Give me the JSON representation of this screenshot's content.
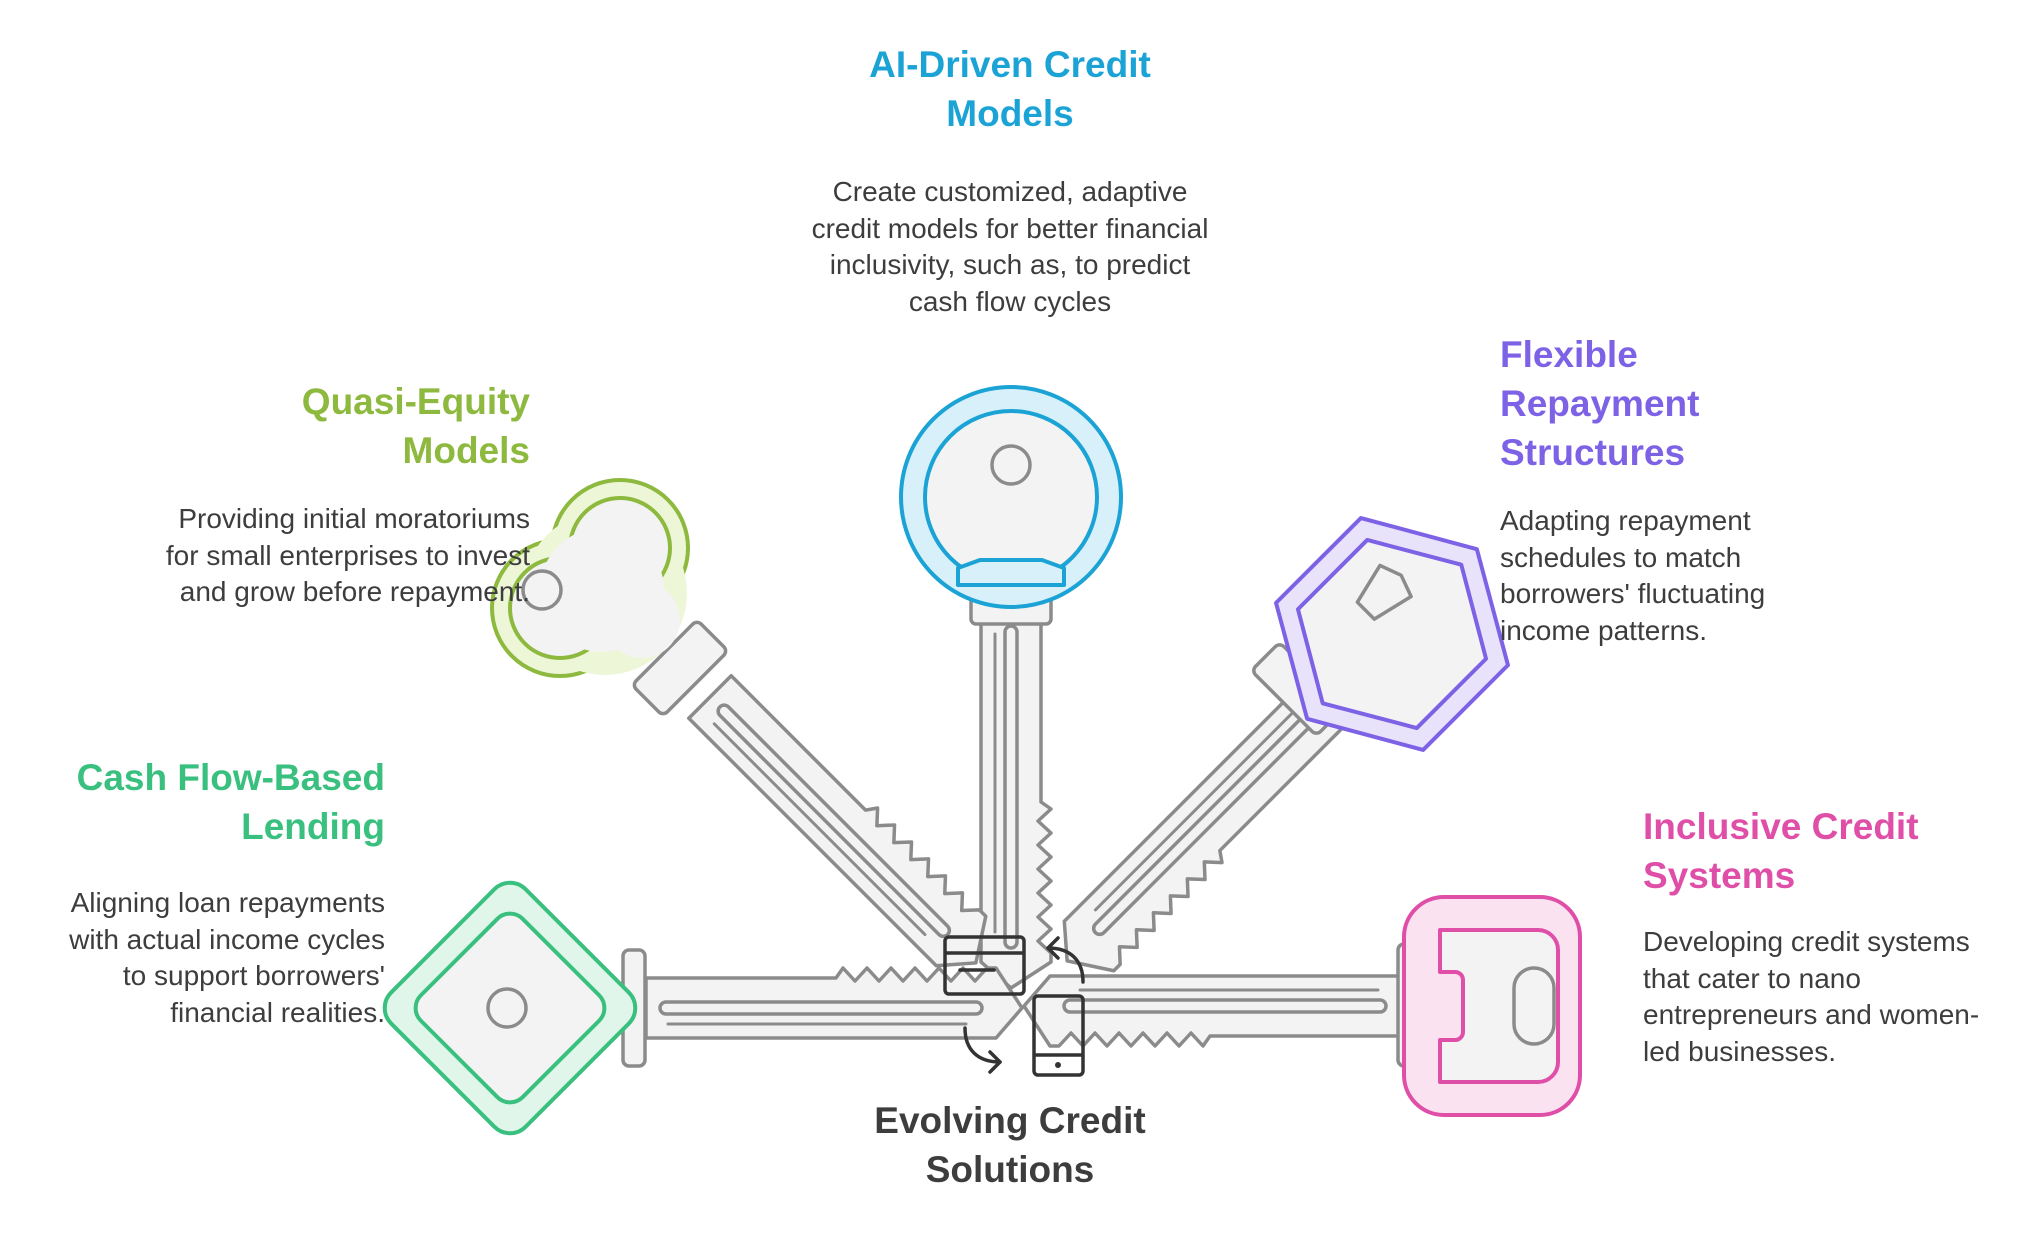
{
  "center": {
    "title": "Evolving Credit Solutions",
    "icon": "credit-card-phone-exchange-icon"
  },
  "items": [
    {
      "key": "ai",
      "title": "AI-Driven Credit Models",
      "description": "Create customized, adaptive credit models for better financial inclusivity, such as, to predict cash flow cycles",
      "color": "#1ba3d6",
      "fill": "#dff3fb"
    },
    {
      "key": "quasi",
      "title": "Quasi-Equity Models",
      "description": "Providing initial moratoriums for small enterprises to invest and grow before repayment.",
      "color": "#8db93e",
      "fill": "#f3f8e3"
    },
    {
      "key": "flexible",
      "title": "Flexible Repayment Structures",
      "description": "Adapting repayment schedules to match borrowers' fluctuating income patterns.",
      "color": "#7d62e6",
      "fill": "#ece8fb"
    },
    {
      "key": "cashflow",
      "title": "Cash Flow-Based Lending",
      "description": "Aligning loan repayments with actual income cycles to support borrowers' financial realities.",
      "color": "#39c07f",
      "fill": "#e4f7ec"
    },
    {
      "key": "inclusive",
      "title": "Inclusive Credit Systems",
      "description": "Developing credit systems that cater to nano entrepreneurs and women-led businesses.",
      "color": "#df4fa8",
      "fill": "#fbe4f2"
    }
  ],
  "shank_color": "#8b8b8b",
  "shank_fill": "#f3f3f3"
}
